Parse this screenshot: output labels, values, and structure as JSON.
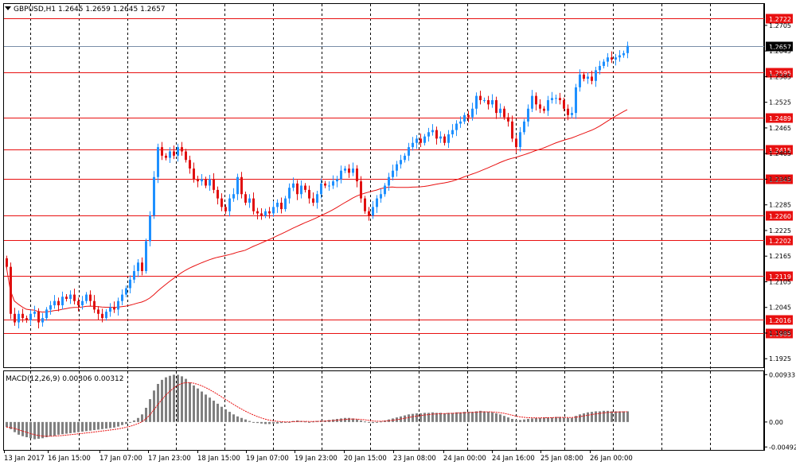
{
  "main_title": "GBPUSD,H1  1.2645 1.2659 1.2645 1.2657",
  "macd_title": "MACD(12,26,9) 0.00306 0.00312",
  "colors": {
    "up": "#1e90ff",
    "down": "#e01010",
    "level": "#e81010",
    "ma": "#e81010",
    "hist": "#808080",
    "signal": "#e81010",
    "grid": "#000000",
    "current_price_line": "#7a8ea8"
  },
  "chart_data": [
    {
      "type": "candlestick",
      "symbol": "GBPUSD",
      "timeframe": "H1",
      "ylim": [
        1.1905,
        1.2755
      ],
      "y_ticks": [
        "1.2705",
        "1.2645",
        "1.2585",
        "1.2525",
        "1.2465",
        "1.2405",
        "1.2345",
        "1.2285",
        "1.2225",
        "1.2165",
        "1.2105",
        "1.2045",
        "1.1985",
        "1.1925"
      ],
      "x_ticks": [
        "13 Jan 2017",
        "16 Jan 15:00",
        "17 Jan 07:00",
        "17 Jan 23:00",
        "18 Jan 15:00",
        "19 Jan 07:00",
        "19 Jan 23:00",
        "20 Jan 15:00",
        "23 Jan 08:00",
        "24 Jan 00:00",
        "24 Jan 16:00",
        "25 Jan 08:00",
        "26 Jan 00:00"
      ],
      "current_price": "1.2657",
      "levels": [
        "1.2722",
        "1.2595",
        "1.2489",
        "1.2415",
        "1.2345",
        "1.2260",
        "1.2202",
        "1.2119",
        "1.2016",
        "1.1985"
      ],
      "close": [
        1.214,
        1.203,
        1.201,
        1.203,
        1.202,
        1.2015,
        1.203,
        1.2035,
        1.201,
        1.202,
        1.204,
        1.205,
        1.206,
        1.205,
        1.207,
        1.2065,
        1.2075,
        1.206,
        1.205,
        1.206,
        1.2075,
        1.206,
        1.204,
        1.203,
        1.202,
        1.2035,
        1.2045,
        1.204,
        1.206,
        1.2075,
        1.209,
        1.211,
        1.213,
        1.215,
        1.213,
        1.22,
        1.226,
        1.235,
        1.242,
        1.24,
        1.2395,
        1.241,
        1.24,
        1.242,
        1.241,
        1.239,
        1.237,
        1.2345,
        1.234,
        1.2345,
        1.233,
        1.2345,
        1.232,
        1.23,
        1.228,
        1.227,
        1.23,
        1.231,
        1.235,
        1.231,
        1.229,
        1.23,
        1.227,
        1.2265,
        1.226,
        1.227,
        1.2265,
        1.228,
        1.229,
        1.2275,
        1.23,
        1.2325,
        1.2335,
        1.231,
        1.233,
        1.232,
        1.23,
        1.229,
        1.231,
        1.2335,
        1.233,
        1.233,
        1.234,
        1.2345,
        1.2365,
        1.237,
        1.236,
        1.237,
        1.234,
        1.23,
        1.227,
        1.226,
        1.228,
        1.23,
        1.231,
        1.233,
        1.235,
        1.2365,
        1.238,
        1.239,
        1.24,
        1.242,
        1.243,
        1.244,
        1.243,
        1.2445,
        1.2455,
        1.246,
        1.244,
        1.2445,
        1.243,
        1.245,
        1.246,
        1.2475,
        1.248,
        1.2495,
        1.249,
        1.251,
        1.254,
        1.253,
        1.253,
        1.252,
        1.253,
        1.25,
        1.251,
        1.249,
        1.248,
        1.244,
        1.242,
        1.2455,
        1.248,
        1.251,
        1.254,
        1.252,
        1.251,
        1.2505,
        1.253,
        1.2535,
        1.2535,
        1.253,
        1.251,
        1.2495,
        1.25,
        1.256,
        1.259,
        1.258,
        1.2585,
        1.2575,
        1.26,
        1.261,
        1.262,
        1.263,
        1.2625,
        1.263,
        1.2635,
        1.264,
        1.2657
      ]
    },
    {
      "type": "macd",
      "params": "12,26,9",
      "ylim": [
        -0.0055,
        0.01
      ],
      "y_ticks": [
        "0.00933",
        "0.00",
        "-0.00492"
      ],
      "hist": [
        -0.001,
        -0.0014,
        -0.002,
        -0.0025,
        -0.0028,
        -0.003,
        -0.0032,
        -0.0034,
        -0.0033,
        -0.0032,
        -0.003,
        -0.0028,
        -0.0027,
        -0.0025,
        -0.0024,
        -0.0023,
        -0.0022,
        -0.0021,
        -0.002,
        -0.0019,
        -0.0018,
        -0.0017,
        -0.0016,
        -0.0015,
        -0.0014,
        -0.0013,
        -0.0012,
        -0.0011,
        -0.0009,
        -0.0006,
        -0.0004,
        -0.0001,
        0.0003,
        0.0008,
        0.0015,
        0.0028,
        0.0045,
        0.0062,
        0.0075,
        0.0083,
        0.0088,
        0.0091,
        0.0093,
        0.0093,
        0.009,
        0.0085,
        0.0078,
        0.0072,
        0.0066,
        0.006,
        0.0054,
        0.0048,
        0.0042,
        0.0036,
        0.003,
        0.0025,
        0.002,
        0.0015,
        0.0011,
        0.0008,
        0.0005,
        0.0002,
        0.0,
        -0.0002,
        -0.0003,
        -0.0004,
        -0.0004,
        -0.0003,
        -0.0003,
        -0.0002,
        -0.0001,
        0.0,
        0.0002,
        0.0003,
        0.0002,
        0.0001,
        0.0,
        0.0001,
        0.0002,
        0.0003,
        0.0003,
        0.0004,
        0.0005,
        0.0006,
        0.0007,
        0.0008,
        0.0008,
        0.0007,
        0.0005,
        0.0003,
        0.0001,
        -0.0001,
        -0.0002,
        -0.0001,
        0.0001,
        0.0003,
        0.0005,
        0.0007,
        0.0009,
        0.0011,
        0.0013,
        0.0015,
        0.0016,
        0.0017,
        0.0017,
        0.0018,
        0.0018,
        0.0019,
        0.0018,
        0.0018,
        0.0017,
        0.0018,
        0.0018,
        0.0019,
        0.0019,
        0.002,
        0.002,
        0.002,
        0.0021,
        0.0022,
        0.0021,
        0.002,
        0.0019,
        0.0017,
        0.0015,
        0.0012,
        0.0009,
        0.0006,
        0.0004,
        0.0004,
        0.0005,
        0.0006,
        0.0007,
        0.0008,
        0.0008,
        0.0009,
        0.0009,
        0.0009,
        0.001,
        0.001,
        0.0009,
        0.0008,
        0.0008,
        0.0012,
        0.0015,
        0.0017,
        0.0019,
        0.002,
        0.0021,
        0.0021,
        0.0022,
        0.0022,
        0.0021,
        0.0021,
        0.0021,
        0.0021,
        0.0021
      ]
    }
  ]
}
